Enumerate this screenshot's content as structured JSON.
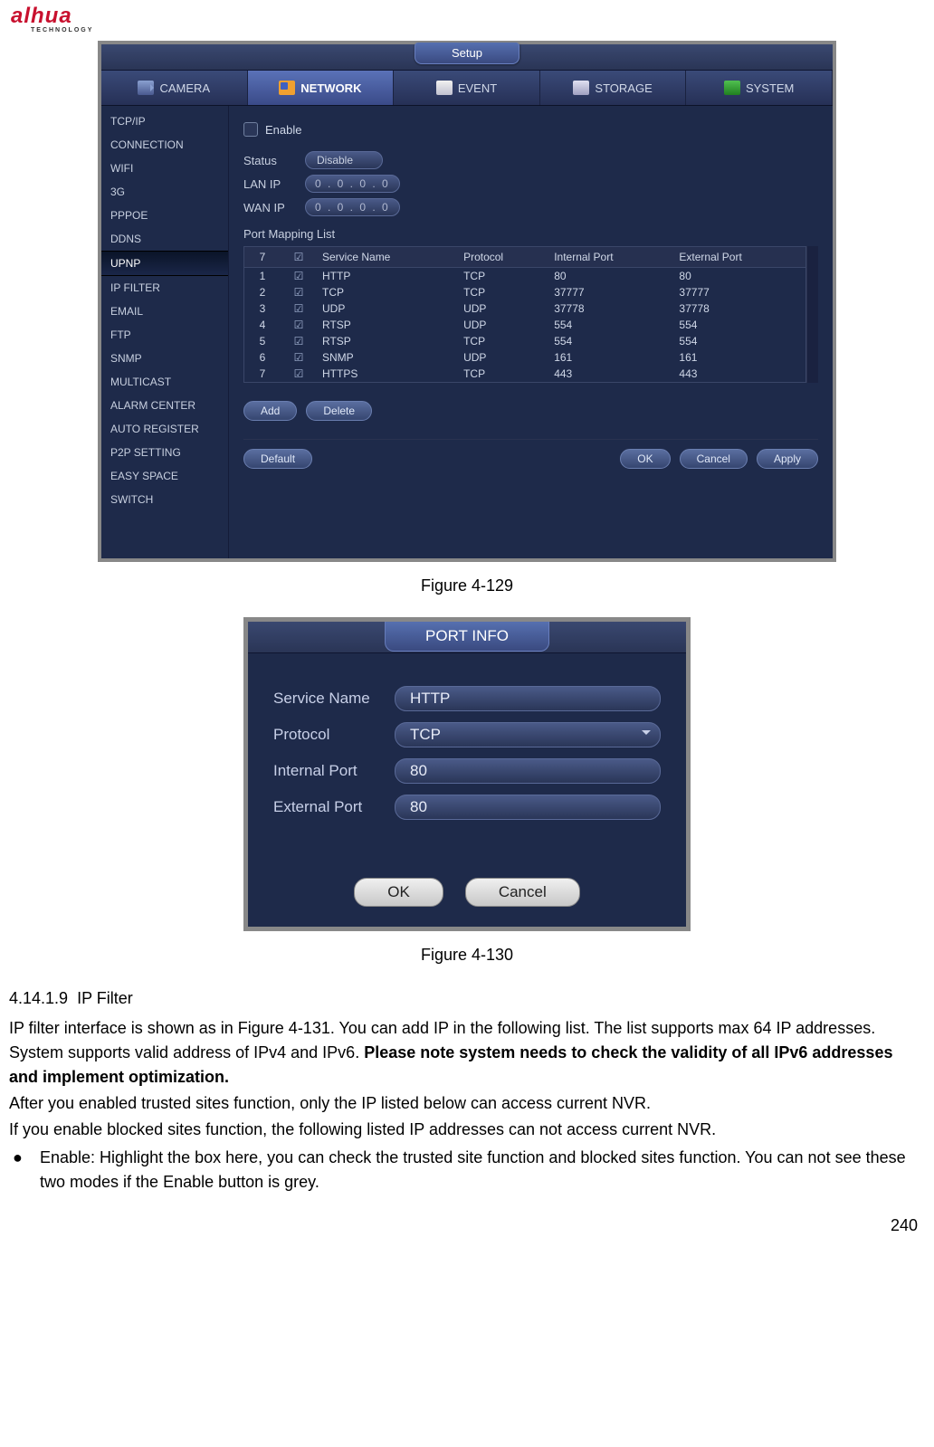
{
  "logo": {
    "brand": "alhua",
    "sub": "TECHNOLOGY"
  },
  "fig129": {
    "setup_tab": "Setup",
    "main_tabs": [
      "CAMERA",
      "NETWORK",
      "EVENT",
      "STORAGE",
      "SYSTEM"
    ],
    "sidebar": [
      "TCP/IP",
      "CONNECTION",
      "WIFI",
      "3G",
      "PPPOE",
      "DDNS",
      "UPNP",
      "IP FILTER",
      "EMAIL",
      "FTP",
      "SNMP",
      "MULTICAST",
      "ALARM CENTER",
      "AUTO REGISTER",
      "P2P SETTING",
      "EASY SPACE",
      "SWITCH"
    ],
    "sidebar_active": "UPNP",
    "enable_label": "Enable",
    "status_label": "Status",
    "status_value": "Disable",
    "lanip_label": "LAN IP",
    "lanip_value": "0  .   0  .   0  .   0",
    "wanip_label": "WAN IP",
    "wanip_value": "0  .   0  .   0  .   0",
    "portmap_label": "Port Mapping List",
    "table": {
      "count": "7",
      "headers": [
        "Service Name",
        "Protocol",
        "Internal Port",
        "External Port"
      ],
      "rows": [
        {
          "n": "1",
          "svc": "HTTP",
          "proto": "TCP",
          "int": "80",
          "ext": "80"
        },
        {
          "n": "2",
          "svc": "TCP",
          "proto": "TCP",
          "int": "37777",
          "ext": "37777"
        },
        {
          "n": "3",
          "svc": "UDP",
          "proto": "UDP",
          "int": "37778",
          "ext": "37778"
        },
        {
          "n": "4",
          "svc": "RTSP",
          "proto": "UDP",
          "int": "554",
          "ext": "554"
        },
        {
          "n": "5",
          "svc": "RTSP",
          "proto": "TCP",
          "int": "554",
          "ext": "554"
        },
        {
          "n": "6",
          "svc": "SNMP",
          "proto": "UDP",
          "int": "161",
          "ext": "161"
        },
        {
          "n": "7",
          "svc": "HTTPS",
          "proto": "TCP",
          "int": "443",
          "ext": "443"
        }
      ]
    },
    "buttons": {
      "add": "Add",
      "delete": "Delete",
      "default": "Default",
      "ok": "OK",
      "cancel": "Cancel",
      "apply": "Apply"
    },
    "caption": "Figure 4-129"
  },
  "fig130": {
    "title": "PORT INFO",
    "rows": [
      {
        "label": "Service Name",
        "value": "HTTP",
        "type": "text"
      },
      {
        "label": "Protocol",
        "value": "TCP",
        "type": "select"
      },
      {
        "label": "Internal Port",
        "value": "80",
        "type": "text"
      },
      {
        "label": "External Port",
        "value": "80",
        "type": "text"
      }
    ],
    "ok": "OK",
    "cancel": "Cancel",
    "caption": "Figure 4-130"
  },
  "doc": {
    "heading_num": "4.14.1.9",
    "heading_title": "IP Filter",
    "p1a": "IP filter interface is shown as in Figure 4-131. You can add IP in the following list. The list supports max 64 IP addresses. System supports valid address of IPv4 and IPv6. ",
    "p1b": "Please note system needs to check the validity of all IPv6 addresses and implement optimization.",
    "p2": "After you enabled trusted sites function, only the IP listed below can access current NVR.",
    "p3": "If you enable blocked sites function, the following listed IP addresses can not access current NVR.",
    "bullet": "Enable: Highlight the box here, you can check the trusted site function and blocked sites function. You can not see these two modes if the Enable button is grey."
  },
  "page_number": "240"
}
